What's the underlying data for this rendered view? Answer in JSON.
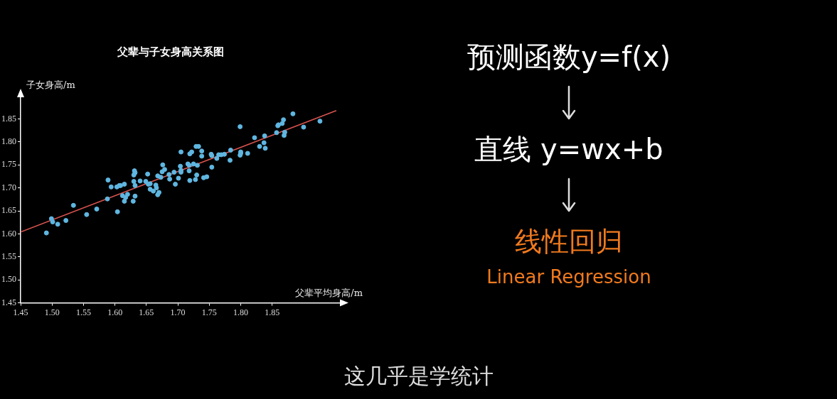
{
  "chart_data": [
    {
      "type": "scatter",
      "title": "父辈与子女身高关系图",
      "xlabel": "父辈平均身高/m",
      "ylabel": "子女身高/m",
      "xlim": [
        1.45,
        1.96
      ],
      "ylim": [
        1.45,
        1.9
      ],
      "xticks": [
        {
          "value": 1.45,
          "label": "1.45"
        },
        {
          "value": 1.5,
          "label": "1.50"
        },
        {
          "value": 1.55,
          "label": "1.55"
        },
        {
          "value": 1.6,
          "label": "1.60"
        },
        {
          "value": 1.65,
          "label": "1.65"
        },
        {
          "value": 1.7,
          "label": "1.70"
        },
        {
          "value": 1.75,
          "label": "1.75"
        },
        {
          "value": 1.8,
          "label": "1.80"
        },
        {
          "value": 1.85,
          "label": "1.85"
        }
      ],
      "yticks": [
        {
          "value": 1.45,
          "label": "1.45"
        },
        {
          "value": 1.5,
          "label": "1.50"
        },
        {
          "value": 1.55,
          "label": "1.55"
        },
        {
          "value": 1.6,
          "label": "1.60"
        },
        {
          "value": 1.65,
          "label": "1.65"
        },
        {
          "value": 1.7,
          "label": "1.70"
        },
        {
          "value": 1.75,
          "label": "1.75"
        },
        {
          "value": 1.8,
          "label": "1.80"
        },
        {
          "value": 1.85,
          "label": "1.85"
        }
      ],
      "grid": false,
      "legend": false,
      "series": [
        {
          "type": "scatter",
          "marker": "circle",
          "color": "#5fb6e0",
          "x": [
            1.491,
            1.499,
            1.501,
            1.509,
            1.522,
            1.534,
            1.555,
            1.571,
            1.588,
            1.589,
            1.594,
            1.603,
            1.604,
            1.607,
            1.609,
            1.612,
            1.615,
            1.615,
            1.617,
            1.62,
            1.629,
            1.63,
            1.631,
            1.632,
            1.63,
            1.632,
            1.632,
            1.64,
            1.649,
            1.652,
            1.653,
            1.656,
            1.656,
            1.661,
            1.665,
            1.666,
            1.668,
            1.668,
            1.67,
            1.673,
            1.676,
            1.679,
            1.675,
            1.686,
            1.687,
            1.694,
            1.696,
            1.701,
            1.705,
            1.704,
            1.705,
            1.705,
            1.716,
            1.718,
            1.718,
            1.719,
            1.719,
            1.722,
            1.725,
            1.729,
            1.733,
            1.728,
            1.73,
            1.731,
            1.738,
            1.738,
            1.741,
            1.746,
            1.753,
            1.754,
            1.754,
            1.762,
            1.765,
            1.769,
            1.774,
            1.783,
            1.784,
            1.799,
            1.799,
            1.8,
            1.8,
            1.811,
            1.822,
            1.83,
            1.837,
            1.838,
            1.839,
            1.857,
            1.859,
            1.86,
            1.866,
            1.868,
            1.869,
            1.87,
            1.883,
            1.9,
            1.926
          ],
          "values": [
            1.602,
            1.633,
            1.626,
            1.621,
            1.629,
            1.662,
            1.642,
            1.654,
            1.676,
            1.717,
            1.702,
            1.702,
            1.648,
            1.705,
            1.705,
            1.683,
            1.708,
            1.671,
            1.679,
            1.686,
            1.671,
            1.728,
            1.737,
            1.733,
            1.714,
            1.705,
            1.682,
            1.715,
            1.714,
            1.73,
            1.708,
            1.709,
            1.697,
            1.693,
            1.706,
            1.7,
            1.726,
            1.685,
            1.69,
            1.723,
            1.75,
            1.74,
            1.735,
            1.729,
            1.719,
            1.734,
            1.708,
            1.721,
            1.778,
            1.747,
            1.738,
            1.734,
            1.752,
            1.749,
            1.737,
            1.716,
            1.774,
            1.778,
            1.752,
            1.79,
            1.79,
            1.718,
            1.728,
            1.749,
            1.78,
            1.769,
            1.722,
            1.724,
            1.773,
            1.77,
            1.745,
            1.764,
            1.772,
            1.772,
            1.773,
            1.76,
            1.782,
            1.833,
            1.771,
            1.778,
            1.775,
            1.775,
            1.809,
            1.79,
            1.798,
            1.813,
            1.786,
            1.82,
            1.835,
            1.837,
            1.84,
            1.848,
            1.814,
            1.821,
            1.861,
            1.832,
            1.845
          ]
        },
        {
          "type": "line",
          "marker": "none",
          "color": "#d9534f",
          "x": [
            1.45,
            1.952
          ],
          "values": [
            1.604,
            1.868
          ]
        }
      ]
    },
    {
      "type": "other",
      "annotations": [
        "预测函数y=f(x)",
        "直线 y=wx+b",
        "线性回归",
        "Linear Regression",
        "这几乎是学统计"
      ]
    }
  ]
}
